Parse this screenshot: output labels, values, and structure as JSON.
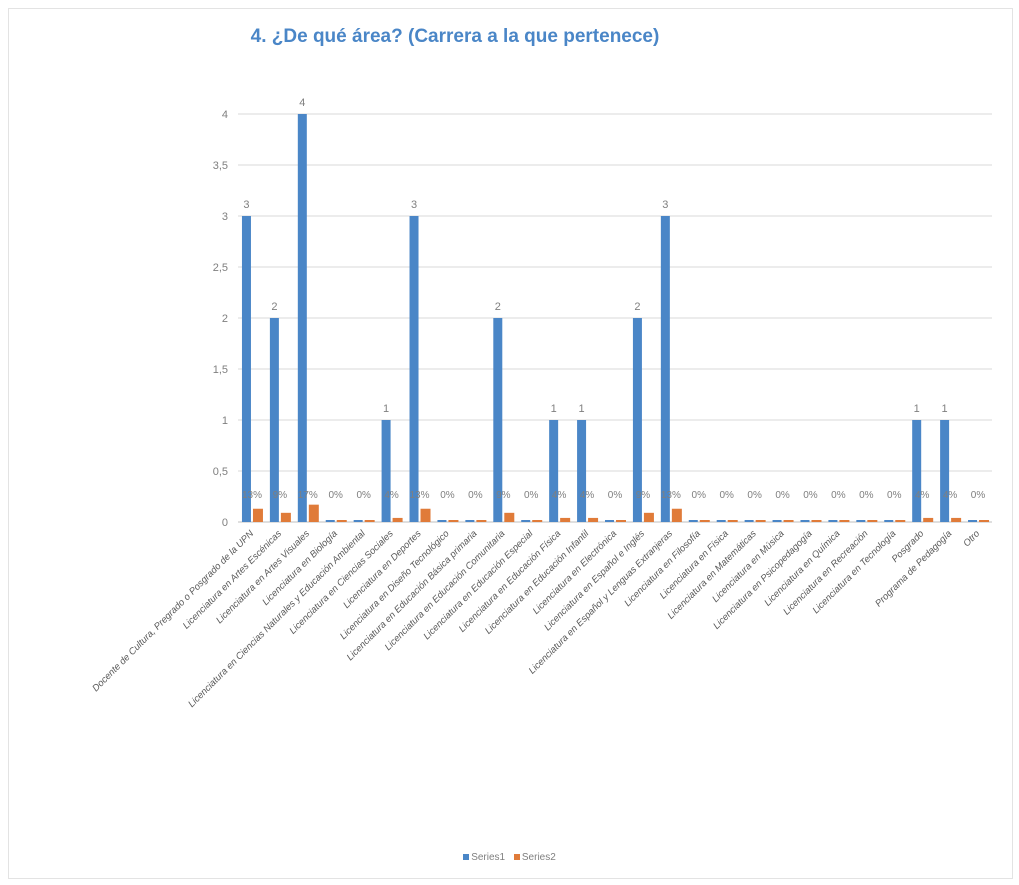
{
  "chart_data": {
    "type": "bar",
    "title": "4. ¿De qué área? (Carrera a la que pertenece)",
    "xlabel": "",
    "ylabel": "",
    "ylim": [
      0,
      4
    ],
    "y_ticks": [
      "0",
      "0,5",
      "1",
      "1,5",
      "2",
      "2,5",
      "3",
      "3,5",
      "4"
    ],
    "grid": true,
    "legend_position": "bottom",
    "categories": [
      "Docente de Cultura, Pregrado o Posgrado de la UPN",
      "Licenciatura en Artes Escénicas",
      "Licenciatura en Artes Visuales",
      "Licenciatura en Biología",
      "Licenciatura en Ciencias Naturales y Educación Ambiental",
      "Licenciatura en Ciencias Sociales",
      "Licenciatura en Deportes",
      "Licenciatura en Diseño Tecnológico",
      "Licenciatura en Educación Básica primaria",
      "Licenciatura en Educación Comunitaria",
      "Licenciatura en Educación Especial",
      "Licenciatura en Educación Física",
      "Licenciatura en Educación Infantil",
      "Licenciatura en Electrónica",
      "Licenciatura en Español e Inglés",
      "Licenciatura en Español y Lenguas Extranjeras",
      "Licenciatura en Filosofía",
      "Licenciatura en Física",
      "Licenciatura en Matemáticas",
      "Licenciatura en Música",
      "Licenciatura en Psicopedagogía",
      "Licenciatura en Química",
      "Licenciatura en Recreación",
      "Licenciatura en Tecnología",
      "Posgrado",
      "Programa de Pedagogía",
      "Otro"
    ],
    "series": [
      {
        "name": "Series1",
        "color": "#4a86c7",
        "values": [
          3,
          2,
          4,
          0,
          0,
          1,
          3,
          0,
          0,
          2,
          0,
          1,
          1,
          0,
          2,
          3,
          0,
          0,
          0,
          0,
          0,
          0,
          0,
          0,
          1,
          1,
          0
        ],
        "labels": [
          "3",
          "2",
          "4",
          "",
          "",
          "1",
          "3",
          "",
          "",
          "2",
          "",
          "1",
          "1",
          "",
          "2",
          "3",
          "",
          "",
          "",
          "",
          "",
          "",
          "",
          "",
          "1",
          "1",
          ""
        ]
      },
      {
        "name": "Series2",
        "color": "#e07b39",
        "values": [
          0.13,
          0.09,
          0.17,
          0,
          0,
          0.04,
          0.13,
          0,
          0,
          0.09,
          0,
          0.04,
          0.04,
          0,
          0.09,
          0.13,
          0,
          0,
          0,
          0,
          0,
          0,
          0,
          0,
          0.04,
          0.04,
          0
        ],
        "labels": [
          "13%",
          "9%",
          "17%",
          "0%",
          "0%",
          "4%",
          "13%",
          "0%",
          "0%",
          "9%",
          "0%",
          "4%",
          "4%",
          "0%",
          "9%",
          "13%",
          "0%",
          "0%",
          "0%",
          "0%",
          "0%",
          "0%",
          "0%",
          "0%",
          "4%",
          "4%",
          "0%"
        ]
      }
    ]
  }
}
